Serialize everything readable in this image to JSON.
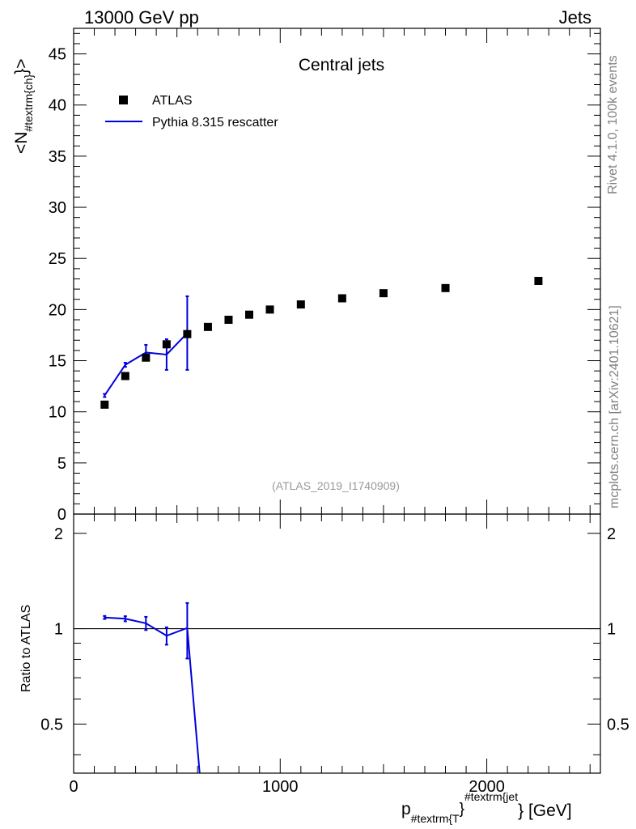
{
  "header": {
    "left": "13000 GeV pp",
    "right": "Jets"
  },
  "side_labels": {
    "rivet": "Rivet 4.1.0,  100k events",
    "mcplots": "mcplots.cern.ch [arXiv:2401.10621]"
  },
  "colors": {
    "data": "#000000",
    "mc": "#0000dd",
    "watermark": "#999999",
    "side_text": "#808080"
  },
  "chart_data": [
    {
      "type": "scatter",
      "panel": "main",
      "title": "Central jets",
      "analysis_tag": "(ATLAS_2019_I1740909)",
      "ylabel": "<N_{#textrm{ch}}>",
      "xlabel": "",
      "xlim": [
        0,
        2550
      ],
      "ylim": [
        0,
        47.5
      ],
      "yticks": [
        0,
        5,
        10,
        15,
        20,
        25,
        30,
        35,
        40,
        45
      ],
      "ytick_labels": [
        "0",
        "5",
        "10",
        "15",
        "20",
        "25",
        "30",
        "35",
        "40",
        "45"
      ],
      "legend": {
        "position": "top-left",
        "entries": [
          {
            "label": "ATLAS",
            "marker": "square"
          },
          {
            "label": "Pythia 8.315 rescatter",
            "marker": "line"
          }
        ]
      },
      "series": [
        {
          "name": "ATLAS",
          "x": [
            150,
            250,
            350,
            450,
            550,
            650,
            750,
            850,
            950,
            1100,
            1300,
            1500,
            1800,
            2250
          ],
          "y": [
            10.7,
            13.5,
            15.3,
            16.6,
            17.6,
            18.3,
            19.0,
            19.5,
            20.0,
            20.5,
            21.1,
            21.6,
            22.1,
            22.8
          ]
        },
        {
          "name": "Pythia 8.315 rescatter",
          "x": [
            150,
            250,
            350,
            450,
            550
          ],
          "y": [
            11.6,
            14.6,
            15.8,
            15.6,
            17.7
          ],
          "yerr": [
            0.15,
            0.2,
            0.75,
            1.5,
            3.6
          ]
        }
      ]
    },
    {
      "type": "line",
      "panel": "ratio",
      "ylabel": "Ratio to ATLAS",
      "xlabel": "p_{#textrm{T}}^{#textrm{jet}} [GeV]",
      "xlim": [
        0,
        2550
      ],
      "ylim": [
        0.35,
        2.3
      ],
      "xticks": [
        0,
        1000,
        2000
      ],
      "xtick_labels": [
        "0",
        "1000",
        "2000"
      ],
      "yticks": [
        0.5,
        1,
        2
      ],
      "ytick_labels": [
        "0.5",
        "1",
        "2"
      ],
      "reference_line": 1,
      "series": [
        {
          "name": "Pythia 8.315 rescatter / ATLAS",
          "x": [
            150,
            250,
            350,
            450,
            550,
            610
          ],
          "y": [
            1.085,
            1.075,
            1.04,
            0.95,
            1.005,
            0.35
          ],
          "yerr": [
            0.012,
            0.02,
            0.05,
            0.06,
            0.2,
            0
          ]
        }
      ]
    }
  ]
}
